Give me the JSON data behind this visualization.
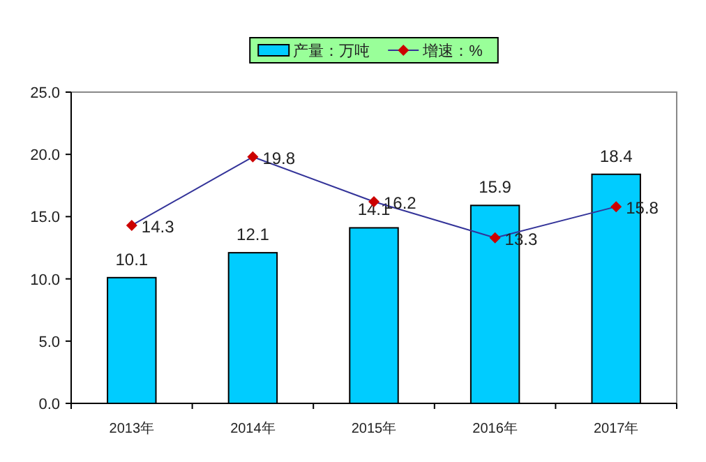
{
  "chart_data": {
    "type": "bar",
    "categories": [
      "2013年",
      "2014年",
      "2015年",
      "2016年",
      "2017年"
    ],
    "series": [
      {
        "name": "产量：万吨",
        "color": "#00ccff",
        "values": [
          10.1,
          12.1,
          14.1,
          15.9,
          18.4
        ]
      },
      {
        "name": "增速：%",
        "type": "line",
        "color": "#333399",
        "marker": "diamond",
        "values": [
          14.3,
          19.8,
          16.2,
          13.3,
          15.8
        ]
      }
    ],
    "ylim": [
      0,
      25
    ],
    "yticks": [
      {
        "value": 0,
        "label": "0.0"
      },
      {
        "value": 5,
        "label": "5.0"
      },
      {
        "value": 10,
        "label": "10.0"
      },
      {
        "value": 15,
        "label": "15.0"
      },
      {
        "value": 20,
        "label": "20.0"
      },
      {
        "value": 25,
        "label": "25.0"
      }
    ],
    "data_labels": true,
    "legend": "top",
    "grid": false
  }
}
